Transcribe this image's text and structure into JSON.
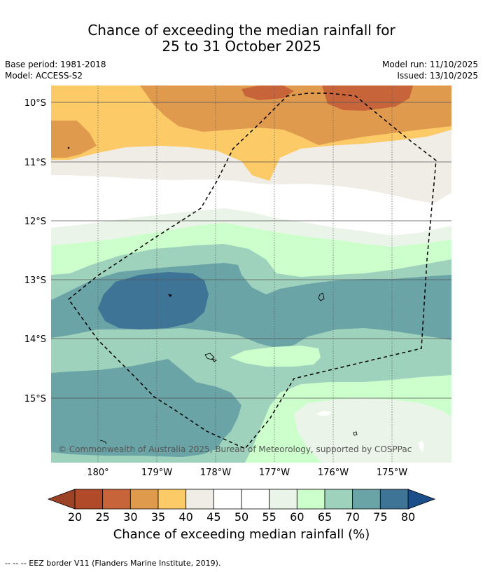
{
  "title": {
    "line1": "Chance of exceeding the median rainfall for",
    "line2": "25 to 31 October 2025"
  },
  "meta": {
    "base_period": "Base period: 1981-2018",
    "model": "Model: ACCESS-S2",
    "model_run": "Model run: 11/10/2025",
    "issued": "Issued: 13/10/2025"
  },
  "axes": {
    "lat_labels": [
      "10°S",
      "11°S",
      "12°S",
      "13°S",
      "14°S",
      "15°S"
    ],
    "lon_labels": [
      "180°",
      "179°W",
      "178°W",
      "177°W",
      "176°W",
      "175°W"
    ]
  },
  "copyright": "© Commonwealth of Australia 2025, Bureau of Meteorology, supported by COSPPac",
  "colorbar": {
    "ticks": [
      "20",
      "25",
      "30",
      "35",
      "40",
      "45",
      "50",
      "55",
      "60",
      "65",
      "70",
      "75",
      "80"
    ],
    "label": "Chance of exceeding median rainfall (%)",
    "colors": [
      "#b04a28",
      "#c8643a",
      "#e09a4e",
      "#fdca68",
      "#f0ece6",
      "#ffffff",
      "#ffffff",
      "#eaf4e8",
      "#ccffcc",
      "#9ed2bc",
      "#6aa4a6",
      "#3e7496"
    ],
    "under_color": "#9c4226",
    "over_color": "#1a4f8a"
  },
  "footer": "--  --  -- EEZ border V11 (Flanders Marine Institute, 2019)."
}
